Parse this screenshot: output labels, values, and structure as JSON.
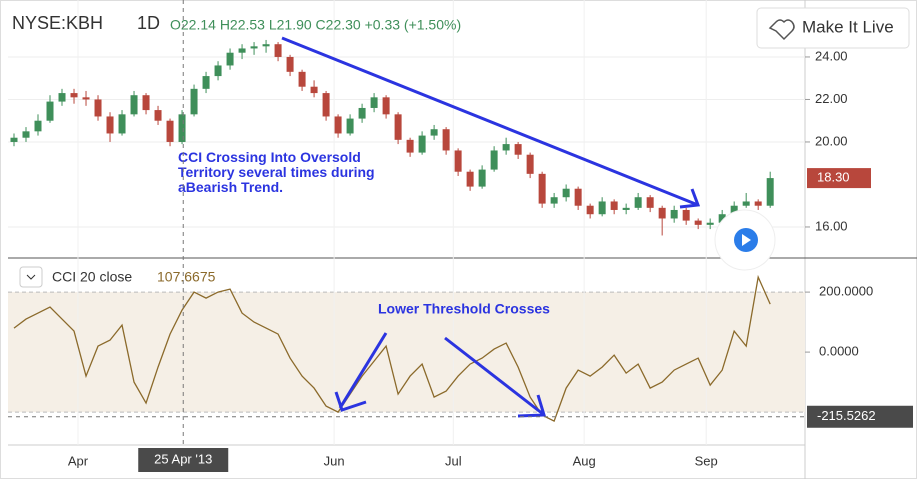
{
  "chart_data": [
    {
      "type": "candlestick",
      "title": "NYSE:KBH",
      "interval": "1D",
      "ohlc_text": "O22.14 H22.53 L21.90 C22.30 +0.33 (+1.50%)",
      "up_color": "#3f8f5a",
      "down_color": "#b8473c",
      "ylim": [
        14.54,
        26.68
      ],
      "yticks": [
        {
          "value": 16,
          "label": "16.00"
        },
        {
          "value": 20,
          "label": "20.00"
        },
        {
          "value": 22,
          "label": "22.00"
        },
        {
          "value": 24,
          "label": "24.00"
        }
      ],
      "last_price": {
        "value": 18.3,
        "label": "18.30"
      },
      "annotation": "CCI Crossing Into Oversold Territory several times during aBearish Trend.",
      "candles": [
        [
          20.0,
          20.4,
          19.8,
          20.2
        ],
        [
          20.2,
          20.7,
          20.0,
          20.5
        ],
        [
          20.5,
          21.3,
          20.3,
          21.0
        ],
        [
          21.0,
          22.2,
          20.9,
          21.9
        ],
        [
          21.9,
          22.5,
          21.7,
          22.3
        ],
        [
          22.3,
          22.5,
          21.8,
          22.1
        ],
        [
          22.1,
          22.4,
          21.7,
          22.0
        ],
        [
          22.0,
          22.2,
          21.0,
          21.2
        ],
        [
          21.2,
          21.4,
          20.0,
          20.4
        ],
        [
          20.4,
          21.5,
          20.3,
          21.3
        ],
        [
          21.3,
          22.4,
          21.2,
          22.2
        ],
        [
          22.2,
          22.3,
          21.3,
          21.5
        ],
        [
          21.5,
          21.7,
          20.8,
          21.0
        ],
        [
          21.0,
          21.1,
          19.8,
          20.0
        ],
        [
          20.0,
          21.5,
          19.9,
          21.3
        ],
        [
          21.3,
          22.7,
          21.2,
          22.5
        ],
        [
          22.5,
          23.3,
          22.3,
          23.1
        ],
        [
          23.1,
          23.8,
          22.9,
          23.6
        ],
        [
          23.6,
          24.4,
          23.4,
          24.2
        ],
        [
          24.2,
          24.6,
          23.9,
          24.4
        ],
        [
          24.4,
          24.7,
          24.1,
          24.5
        ],
        [
          24.5,
          24.8,
          24.2,
          24.6
        ],
        [
          24.6,
          24.7,
          23.8,
          24.0
        ],
        [
          24.0,
          24.1,
          23.1,
          23.3
        ],
        [
          23.3,
          23.4,
          22.4,
          22.6
        ],
        [
          22.6,
          22.9,
          22.1,
          22.3
        ],
        [
          22.3,
          22.4,
          21.0,
          21.2
        ],
        [
          21.2,
          21.3,
          20.2,
          20.4
        ],
        [
          20.4,
          21.3,
          20.3,
          21.1
        ],
        [
          21.1,
          21.8,
          20.9,
          21.6
        ],
        [
          21.6,
          22.3,
          21.4,
          22.1
        ],
        [
          22.1,
          22.2,
          21.1,
          21.3
        ],
        [
          21.3,
          21.4,
          19.9,
          20.1
        ],
        [
          20.1,
          20.2,
          19.3,
          19.5
        ],
        [
          19.5,
          20.5,
          19.4,
          20.3
        ],
        [
          20.3,
          20.8,
          20.1,
          20.6
        ],
        [
          20.6,
          20.7,
          19.4,
          19.6
        ],
        [
          19.6,
          19.7,
          18.4,
          18.6
        ],
        [
          18.6,
          18.7,
          17.7,
          17.9
        ],
        [
          17.9,
          18.9,
          17.8,
          18.7
        ],
        [
          18.7,
          19.8,
          18.6,
          19.6
        ],
        [
          19.6,
          20.2,
          19.4,
          19.9
        ],
        [
          19.9,
          20.0,
          19.2,
          19.4
        ],
        [
          19.4,
          19.5,
          18.3,
          18.5
        ],
        [
          18.5,
          18.6,
          16.9,
          17.1
        ],
        [
          17.1,
          17.6,
          16.9,
          17.4
        ],
        [
          17.4,
          18.0,
          17.2,
          17.8
        ],
        [
          17.8,
          17.9,
          16.8,
          17.0
        ],
        [
          17.0,
          17.1,
          16.4,
          16.6
        ],
        [
          16.6,
          17.4,
          16.5,
          17.2
        ],
        [
          17.2,
          17.3,
          16.6,
          16.8
        ],
        [
          16.8,
          17.1,
          16.6,
          16.9
        ],
        [
          16.9,
          17.6,
          16.8,
          17.4
        ],
        [
          17.4,
          17.5,
          16.7,
          16.9
        ],
        [
          16.9,
          17.0,
          15.6,
          16.4
        ],
        [
          16.4,
          17.0,
          16.2,
          16.8
        ],
        [
          16.8,
          16.9,
          16.1,
          16.3
        ],
        [
          16.3,
          16.4,
          15.9,
          16.1
        ],
        [
          16.1,
          16.4,
          15.9,
          16.2
        ],
        [
          16.2,
          16.8,
          16.0,
          16.6
        ],
        [
          16.6,
          17.2,
          16.5,
          17.0
        ],
        [
          17.0,
          17.6,
          16.9,
          17.2
        ],
        [
          17.2,
          17.3,
          16.8,
          17.0
        ],
        [
          17.0,
          18.6,
          16.9,
          18.3
        ]
      ]
    },
    {
      "type": "line",
      "name": "CCI 20 close",
      "value_label": "107.6675",
      "color": "#8b6a2b",
      "band": [
        -200,
        200
      ],
      "ylim": [
        -353,
        297
      ],
      "yticks": [
        {
          "value": 200,
          "label": "200.0000"
        },
        {
          "value": 0,
          "label": "0.0000"
        }
      ],
      "annotation": "Lower Threshold Crosses",
      "values": [
        80,
        110,
        130,
        150,
        110,
        70,
        -80,
        20,
        40,
        90,
        -100,
        -170,
        -50,
        60,
        140,
        200,
        180,
        200,
        210,
        130,
        100,
        80,
        60,
        -20,
        -80,
        -120,
        -180,
        -200,
        -140,
        -80,
        -30,
        20,
        -140,
        -80,
        -40,
        -150,
        -130,
        -80,
        -40,
        -20,
        10,
        30,
        -50,
        -150,
        -210,
        -230,
        -120,
        -60,
        -80,
        -50,
        -10,
        -70,
        -40,
        -120,
        -100,
        -60,
        -40,
        -20,
        -110,
        -60,
        70,
        20,
        250,
        160
      ],
      "xlim": [
        -0.5,
        65.9
      ],
      "xticks": [
        {
          "value": 5.33,
          "label": "Apr"
        },
        {
          "value": 26.67,
          "label": "Jun"
        },
        {
          "value": 36.6,
          "label": "Jul"
        },
        {
          "value": 47.5,
          "label": "Aug"
        },
        {
          "value": 57.67,
          "label": "Sep"
        }
      ],
      "crosshair": {
        "x": {
          "value": 14.1,
          "label": "25 Apr '13"
        },
        "y": {
          "value": -215.5262,
          "label": "-215.5262"
        }
      }
    }
  ],
  "ui": {
    "button": "Make It Live"
  }
}
